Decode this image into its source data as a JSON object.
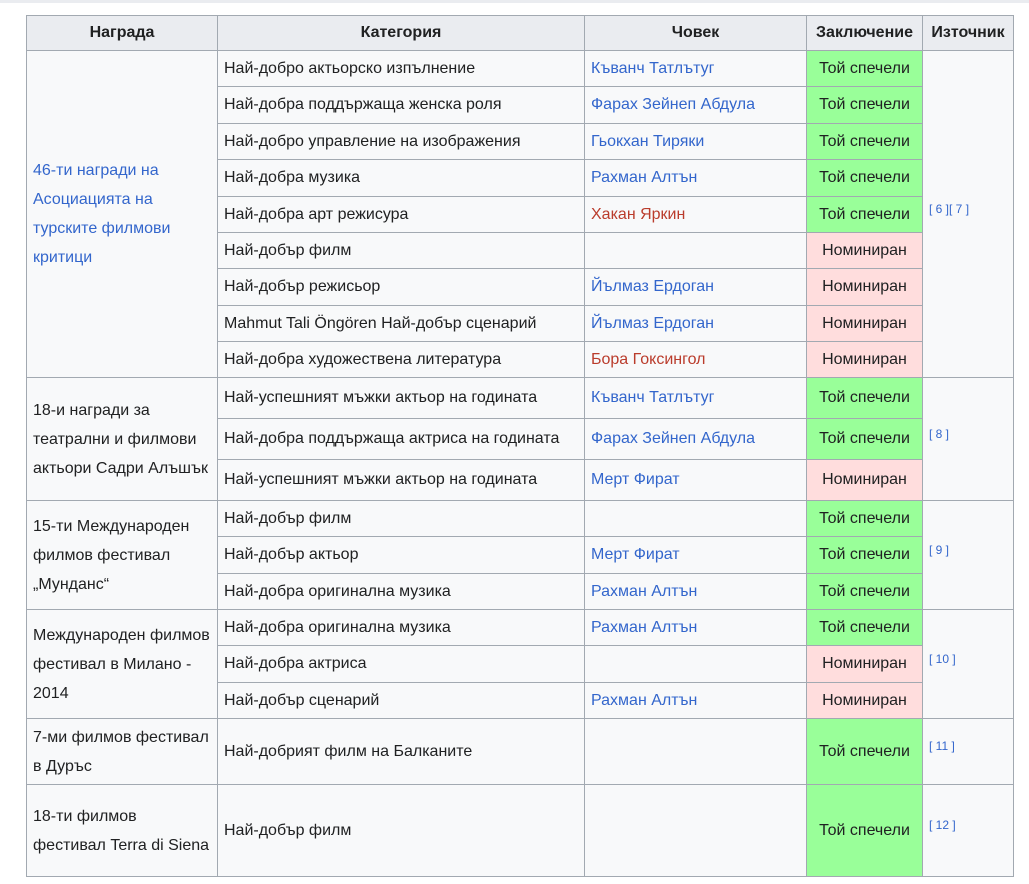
{
  "headers": [
    "Награда",
    "Категория",
    "Човек",
    "Заключение",
    "Източник"
  ],
  "groups": [
    {
      "award": "46-ти награди на Асоциацията на турските филмови критици",
      "award_link": true,
      "sources": [
        "[ 6 ]",
        "[ 7 ]"
      ],
      "rows": [
        {
          "category": "Най-добро актьорско изпълнение",
          "person": "Къванч Татлътуг",
          "person_type": "link",
          "result": "Той спечели"
        },
        {
          "category": "Най-добра поддържаща женска роля",
          "person": "Фарах Зейнеп Абдула",
          "person_type": "link",
          "result": "Той спечели"
        },
        {
          "category": "Най-добро управление на изображения",
          "person": "Гьокхан Тиряки",
          "person_type": "link",
          "result": "Той спечели"
        },
        {
          "category": "Най-добра музика",
          "person": "Рахман Алтън",
          "person_type": "link",
          "result": "Той спечели"
        },
        {
          "category": "Най-добра арт режисура",
          "person": "Хакан Яркин",
          "person_type": "redlink",
          "result": "Той спечели"
        },
        {
          "category": "Най-добър филм",
          "person": "",
          "person_type": "none",
          "result": "Номиниран"
        },
        {
          "category": "Най-добър режисьор",
          "person": "Йълмаз Ердоган",
          "person_type": "link",
          "result": "Номиниран"
        },
        {
          "category": "Mahmut Tali Öngören Най-добър сценарий",
          "person": "Йълмаз Ердоган",
          "person_type": "link",
          "result": "Номиниран"
        },
        {
          "category": "Най-добра художествена литература",
          "person": "Бора Гоксингол",
          "person_type": "redlink",
          "result": "Номиниран"
        }
      ]
    },
    {
      "award": "18-и награди за театрални и филмови актьори Садри Алъшък",
      "award_link": false,
      "sources": [
        "[ 8 ]"
      ],
      "rows": [
        {
          "category": "Най-успешният мъжки актьор на годината",
          "person": "Къванч Татлътуг",
          "person_type": "link",
          "result": "Той спечели"
        },
        {
          "category": "Най-добра поддържаща актриса на годината",
          "person": "Фарах Зейнеп Абдула",
          "person_type": "link",
          "result": "Той спечели"
        },
        {
          "category": "Най-успешният мъжки актьор на годината",
          "person": "Мерт Фират",
          "person_type": "link",
          "result": "Номиниран"
        }
      ]
    },
    {
      "award": "15-ти Международен филмов фестивал „Мунданс“",
      "award_link": false,
      "sources": [
        "[ 9 ]"
      ],
      "rows": [
        {
          "category": "Най-добър филм",
          "person": "",
          "person_type": "none",
          "result": "Той спечели"
        },
        {
          "category": "Най-добър актьор",
          "person": "Мерт Фират",
          "person_type": "link",
          "result": "Той спечели"
        },
        {
          "category": "Най-добра оригинална музика",
          "person": "Рахман Алтън",
          "person_type": "link",
          "result": "Той спечели"
        }
      ]
    },
    {
      "award": "Международен филмов фестивал в Милано - 2014",
      "award_link": false,
      "sources": [
        "[ 10 ]"
      ],
      "rows": [
        {
          "category": "Най-добра оригинална музика",
          "person": "Рахман Алтън",
          "person_type": "link",
          "result": "Той спечели"
        },
        {
          "category": "Най-добра актриса",
          "person": "",
          "person_type": "none",
          "result": "Номиниран"
        },
        {
          "category": "Най-добър сценарий",
          "person": "Рахман Алтън",
          "person_type": "link",
          "result": "Номиниран"
        }
      ]
    },
    {
      "award": "7-ми филмов фестивал в Дуръс",
      "award_link": false,
      "sources": [
        "[ 11 ]"
      ],
      "rows": [
        {
          "category": "Най-добрият филм на Балканите",
          "person": "",
          "person_type": "none",
          "result": "Той спечели"
        }
      ]
    },
    {
      "award": "18-ти филмов фестивал Terra di Siena",
      "award_link": false,
      "sources": [
        "[ 12 ]"
      ],
      "rows": [
        {
          "category": "Най-добър филм",
          "person": "",
          "person_type": "none",
          "result": "Той спечели"
        }
      ]
    }
  ],
  "won_label": "Той спечели",
  "colors": {
    "won": "#99ff99",
    "nominated": "#ffdddd",
    "link": "#3366cc",
    "redlink": "#ba3c2c",
    "header_bg": "#eaecf0",
    "cell_bg": "#f8f9fa",
    "border": "#a2a9b1"
  }
}
